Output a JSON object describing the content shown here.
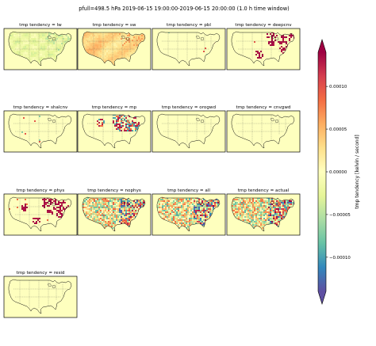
{
  "figure": {
    "suptitle": "pfull=498.5 hPa 2019-06-15 19:00:00-2019-06-15 20:00:00 (1.0 h time window)"
  },
  "colors": {
    "neutral": "#feffbe",
    "coastline": "#111111",
    "frame": "#000000"
  },
  "chart_data": {
    "type": "heatmap",
    "colormap": "Spectral_r",
    "colorbar": {
      "label": "tmp tendency [kelvin / second]",
      "ticks": [
        {
          "value": 0.0001,
          "label": "0.00010"
        },
        {
          "value": 5e-05,
          "label": "0.00005"
        },
        {
          "value": 0.0,
          "label": "0.00000"
        },
        {
          "value": -5e-05,
          "label": "−0.00005"
        },
        {
          "value": -0.0001,
          "label": "−0.00010"
        }
      ],
      "vmin": -0.00014,
      "vmax": 0.00014,
      "extend": "both"
    },
    "panels": [
      {
        "title": "tmp tendency = lw",
        "pattern": "lw"
      },
      {
        "title": "tmp tendency = sw",
        "pattern": "sw"
      },
      {
        "title": "tmp tendency = pbl",
        "pattern": "quiet"
      },
      {
        "title": "tmp tendency = deepcnv",
        "pattern": "deep"
      },
      {
        "title": "tmp tendency = shalcnv",
        "pattern": "quiet"
      },
      {
        "title": "tmp tendency = mp",
        "pattern": "mp"
      },
      {
        "title": "tmp tendency = orogwd",
        "pattern": "empty"
      },
      {
        "title": "tmp tendency = cnvgwd",
        "pattern": "empty"
      },
      {
        "title": "tmp tendency = phys",
        "pattern": "phys"
      },
      {
        "title": "tmp tendency = nophys",
        "pattern": "noisy"
      },
      {
        "title": "tmp tendency = all",
        "pattern": "noisy"
      },
      {
        "title": "tmp tendency = actual",
        "pattern": "noisy"
      },
      {
        "title": "tmp tendency = resid",
        "pattern": "empty"
      }
    ]
  }
}
